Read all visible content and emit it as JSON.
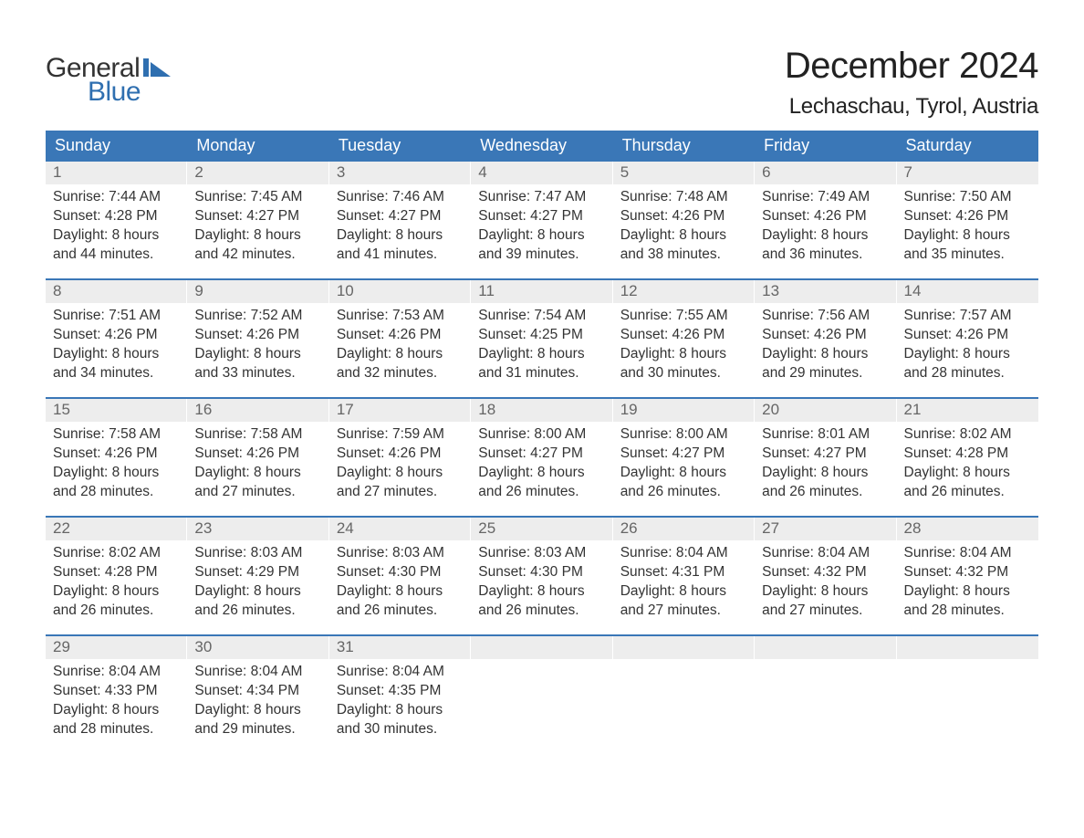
{
  "colors": {
    "header_bg": "#3a77b7",
    "header_text": "#ffffff",
    "week_border": "#3a77b7",
    "daynum_bg": "#ededed",
    "daynum_text": "#666666",
    "body_text": "#333333",
    "logo_blue": "#2f6fb0",
    "title_text": "#222222",
    "page_bg": "#ffffff"
  },
  "logo": {
    "line1": "General",
    "line2": "Blue"
  },
  "title": "December 2024",
  "location": "Lechaschau, Tyrol, Austria",
  "day_names": [
    "Sunday",
    "Monday",
    "Tuesday",
    "Wednesday",
    "Thursday",
    "Friday",
    "Saturday"
  ],
  "weeks": [
    [
      {
        "n": "1",
        "sr": "Sunrise: 7:44 AM",
        "ss": "Sunset: 4:28 PM",
        "d1": "Daylight: 8 hours",
        "d2": "and 44 minutes."
      },
      {
        "n": "2",
        "sr": "Sunrise: 7:45 AM",
        "ss": "Sunset: 4:27 PM",
        "d1": "Daylight: 8 hours",
        "d2": "and 42 minutes."
      },
      {
        "n": "3",
        "sr": "Sunrise: 7:46 AM",
        "ss": "Sunset: 4:27 PM",
        "d1": "Daylight: 8 hours",
        "d2": "and 41 minutes."
      },
      {
        "n": "4",
        "sr": "Sunrise: 7:47 AM",
        "ss": "Sunset: 4:27 PM",
        "d1": "Daylight: 8 hours",
        "d2": "and 39 minutes."
      },
      {
        "n": "5",
        "sr": "Sunrise: 7:48 AM",
        "ss": "Sunset: 4:26 PM",
        "d1": "Daylight: 8 hours",
        "d2": "and 38 minutes."
      },
      {
        "n": "6",
        "sr": "Sunrise: 7:49 AM",
        "ss": "Sunset: 4:26 PM",
        "d1": "Daylight: 8 hours",
        "d2": "and 36 minutes."
      },
      {
        "n": "7",
        "sr": "Sunrise: 7:50 AM",
        "ss": "Sunset: 4:26 PM",
        "d1": "Daylight: 8 hours",
        "d2": "and 35 minutes."
      }
    ],
    [
      {
        "n": "8",
        "sr": "Sunrise: 7:51 AM",
        "ss": "Sunset: 4:26 PM",
        "d1": "Daylight: 8 hours",
        "d2": "and 34 minutes."
      },
      {
        "n": "9",
        "sr": "Sunrise: 7:52 AM",
        "ss": "Sunset: 4:26 PM",
        "d1": "Daylight: 8 hours",
        "d2": "and 33 minutes."
      },
      {
        "n": "10",
        "sr": "Sunrise: 7:53 AM",
        "ss": "Sunset: 4:26 PM",
        "d1": "Daylight: 8 hours",
        "d2": "and 32 minutes."
      },
      {
        "n": "11",
        "sr": "Sunrise: 7:54 AM",
        "ss": "Sunset: 4:25 PM",
        "d1": "Daylight: 8 hours",
        "d2": "and 31 minutes."
      },
      {
        "n": "12",
        "sr": "Sunrise: 7:55 AM",
        "ss": "Sunset: 4:26 PM",
        "d1": "Daylight: 8 hours",
        "d2": "and 30 minutes."
      },
      {
        "n": "13",
        "sr": "Sunrise: 7:56 AM",
        "ss": "Sunset: 4:26 PM",
        "d1": "Daylight: 8 hours",
        "d2": "and 29 minutes."
      },
      {
        "n": "14",
        "sr": "Sunrise: 7:57 AM",
        "ss": "Sunset: 4:26 PM",
        "d1": "Daylight: 8 hours",
        "d2": "and 28 minutes."
      }
    ],
    [
      {
        "n": "15",
        "sr": "Sunrise: 7:58 AM",
        "ss": "Sunset: 4:26 PM",
        "d1": "Daylight: 8 hours",
        "d2": "and 28 minutes."
      },
      {
        "n": "16",
        "sr": "Sunrise: 7:58 AM",
        "ss": "Sunset: 4:26 PM",
        "d1": "Daylight: 8 hours",
        "d2": "and 27 minutes."
      },
      {
        "n": "17",
        "sr": "Sunrise: 7:59 AM",
        "ss": "Sunset: 4:26 PM",
        "d1": "Daylight: 8 hours",
        "d2": "and 27 minutes."
      },
      {
        "n": "18",
        "sr": "Sunrise: 8:00 AM",
        "ss": "Sunset: 4:27 PM",
        "d1": "Daylight: 8 hours",
        "d2": "and 26 minutes."
      },
      {
        "n": "19",
        "sr": "Sunrise: 8:00 AM",
        "ss": "Sunset: 4:27 PM",
        "d1": "Daylight: 8 hours",
        "d2": "and 26 minutes."
      },
      {
        "n": "20",
        "sr": "Sunrise: 8:01 AM",
        "ss": "Sunset: 4:27 PM",
        "d1": "Daylight: 8 hours",
        "d2": "and 26 minutes."
      },
      {
        "n": "21",
        "sr": "Sunrise: 8:02 AM",
        "ss": "Sunset: 4:28 PM",
        "d1": "Daylight: 8 hours",
        "d2": "and 26 minutes."
      }
    ],
    [
      {
        "n": "22",
        "sr": "Sunrise: 8:02 AM",
        "ss": "Sunset: 4:28 PM",
        "d1": "Daylight: 8 hours",
        "d2": "and 26 minutes."
      },
      {
        "n": "23",
        "sr": "Sunrise: 8:03 AM",
        "ss": "Sunset: 4:29 PM",
        "d1": "Daylight: 8 hours",
        "d2": "and 26 minutes."
      },
      {
        "n": "24",
        "sr": "Sunrise: 8:03 AM",
        "ss": "Sunset: 4:30 PM",
        "d1": "Daylight: 8 hours",
        "d2": "and 26 minutes."
      },
      {
        "n": "25",
        "sr": "Sunrise: 8:03 AM",
        "ss": "Sunset: 4:30 PM",
        "d1": "Daylight: 8 hours",
        "d2": "and 26 minutes."
      },
      {
        "n": "26",
        "sr": "Sunrise: 8:04 AM",
        "ss": "Sunset: 4:31 PM",
        "d1": "Daylight: 8 hours",
        "d2": "and 27 minutes."
      },
      {
        "n": "27",
        "sr": "Sunrise: 8:04 AM",
        "ss": "Sunset: 4:32 PM",
        "d1": "Daylight: 8 hours",
        "d2": "and 27 minutes."
      },
      {
        "n": "28",
        "sr": "Sunrise: 8:04 AM",
        "ss": "Sunset: 4:32 PM",
        "d1": "Daylight: 8 hours",
        "d2": "and 28 minutes."
      }
    ],
    [
      {
        "n": "29",
        "sr": "Sunrise: 8:04 AM",
        "ss": "Sunset: 4:33 PM",
        "d1": "Daylight: 8 hours",
        "d2": "and 28 minutes."
      },
      {
        "n": "30",
        "sr": "Sunrise: 8:04 AM",
        "ss": "Sunset: 4:34 PM",
        "d1": "Daylight: 8 hours",
        "d2": "and 29 minutes."
      },
      {
        "n": "31",
        "sr": "Sunrise: 8:04 AM",
        "ss": "Sunset: 4:35 PM",
        "d1": "Daylight: 8 hours",
        "d2": "and 30 minutes."
      },
      {
        "empty": true
      },
      {
        "empty": true
      },
      {
        "empty": true
      },
      {
        "empty": true
      }
    ]
  ]
}
